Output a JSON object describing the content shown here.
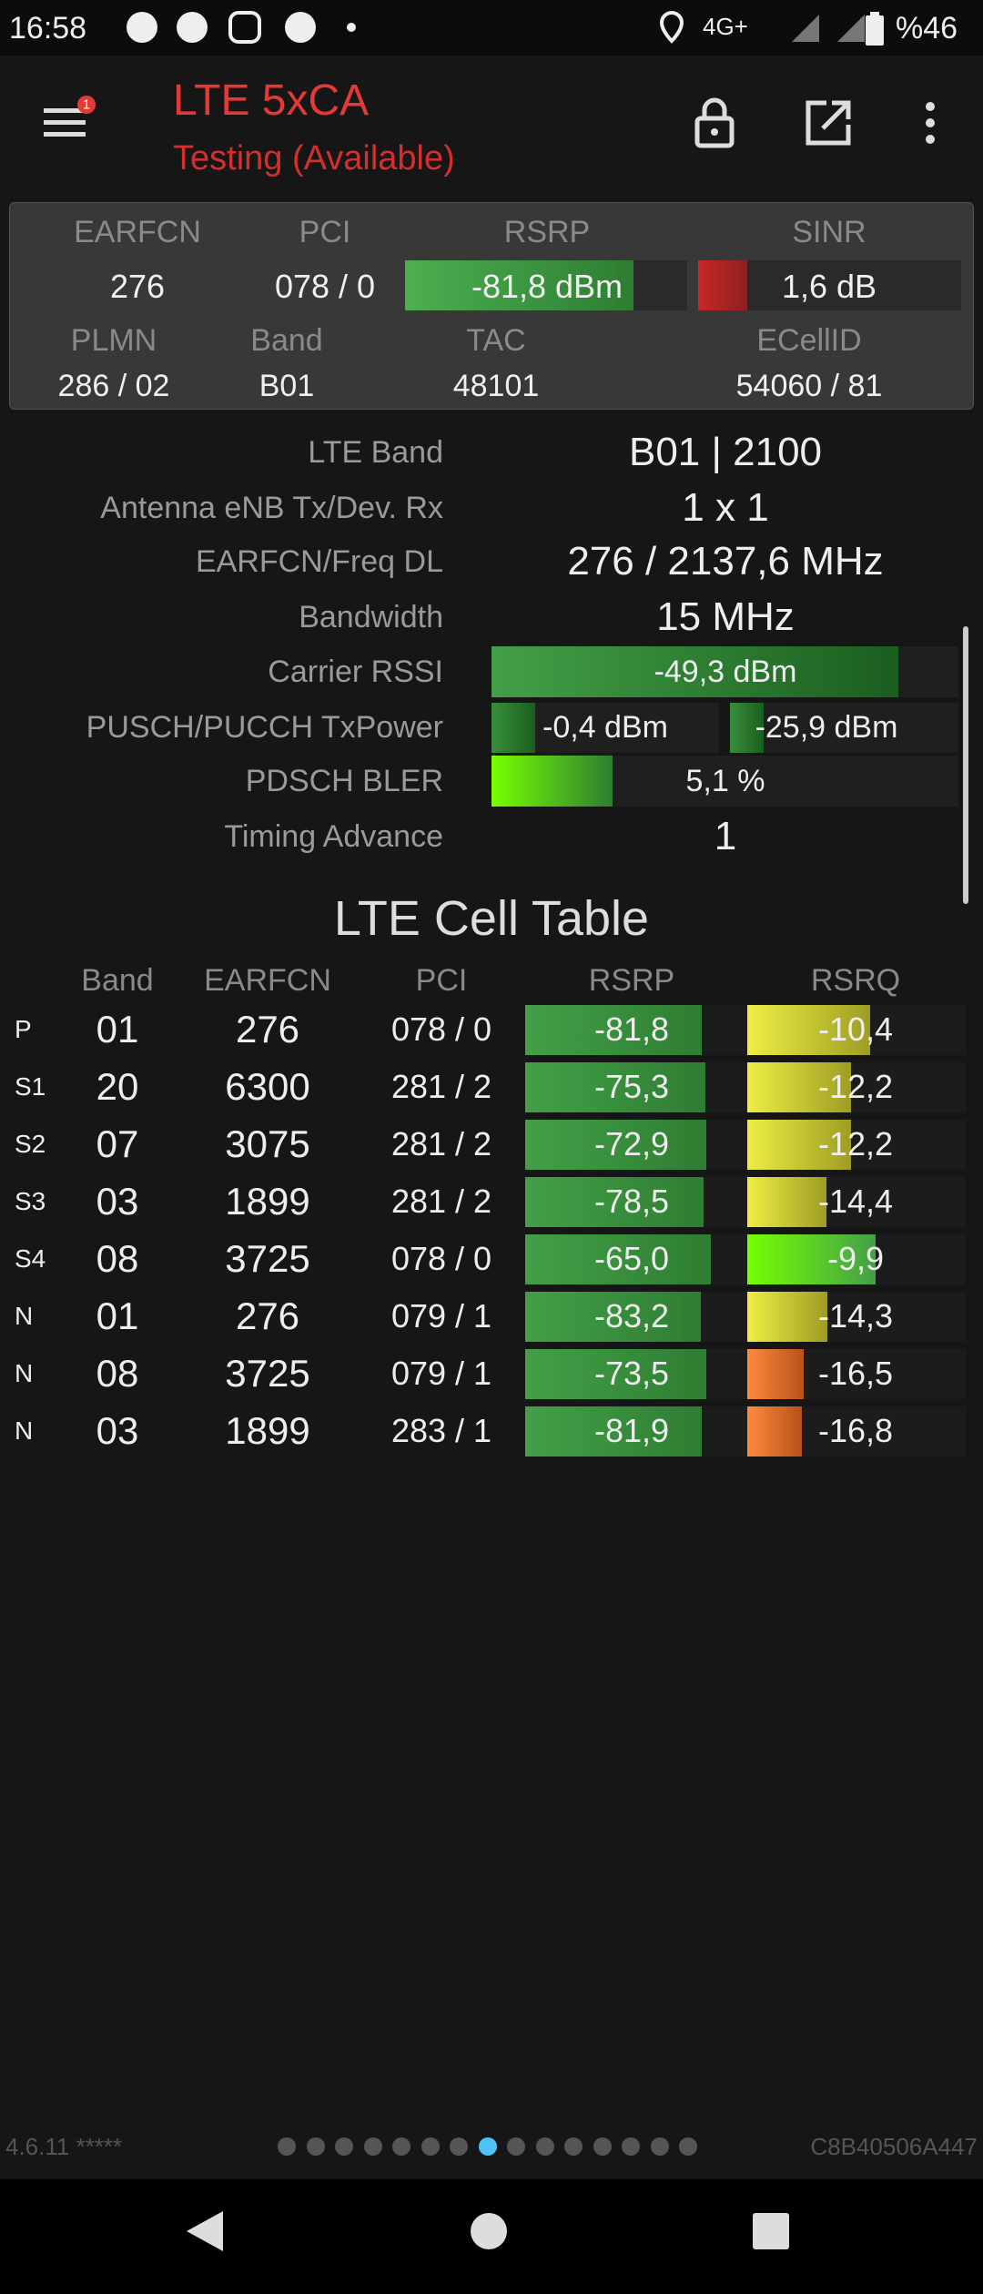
{
  "status_bar": {
    "time": "16:58",
    "network": "4G+",
    "battery": "%46"
  },
  "toolbar": {
    "title": "LTE 5xCA",
    "subtitle": "Testing (Available)",
    "badge": "1"
  },
  "summary": {
    "headers": [
      "EARFCN",
      "PCI",
      "RSRP",
      "SINR"
    ],
    "values": [
      "276",
      "078 / 0",
      "-81,8 dBm",
      "1,6 dB"
    ],
    "headers2": [
      "PLMN",
      "Band",
      "TAC",
      "ECellID"
    ],
    "values2": [
      "286 / 02",
      "B01",
      "48101",
      "54060 / 81"
    ]
  },
  "details": [
    {
      "label": "LTE Band",
      "values": [
        "B01 | 2100"
      ]
    },
    {
      "label": "Antenna eNB Tx/Dev. Rx",
      "values": [
        "1 x 1"
      ]
    },
    {
      "label": "EARFCN/Freq DL",
      "values": [
        "276 / 2137,6 MHz"
      ]
    },
    {
      "label": "Bandwidth",
      "values": [
        "15 MHz"
      ]
    },
    {
      "label": "Carrier RSSI",
      "values": [
        "-49,3 dBm"
      ]
    },
    {
      "label": "PUSCH/PUCCH TxPower",
      "values": [
        "-0,4 dBm",
        "-25,9 dBm"
      ]
    },
    {
      "label": "PDSCH BLER",
      "values": [
        "5,1 %"
      ]
    },
    {
      "label": "Timing Advance",
      "values": [
        "1"
      ]
    }
  ],
  "cell_table": {
    "title": "LTE Cell Table",
    "columns": [
      "Band",
      "EARFCN",
      "PCI",
      "RSRP",
      "RSRQ"
    ],
    "rows": [
      [
        "P",
        "01",
        "276",
        "078 / 0",
        "-81,8",
        "-10,4"
      ],
      [
        "S1",
        "20",
        "6300",
        "281 / 2",
        "-75,3",
        "-12,2"
      ],
      [
        "S2",
        "07",
        "3075",
        "281 / 2",
        "-72,9",
        "-12,2"
      ],
      [
        "S3",
        "03",
        "1899",
        "281 / 2",
        "-78,5",
        "-14,4"
      ],
      [
        "S4",
        "08",
        "3725",
        "078 / 0",
        "-65,0",
        "-9,9"
      ],
      [
        "N",
        "01",
        "276",
        "079 / 1",
        "-83,2",
        "-14,3"
      ],
      [
        "N",
        "08",
        "3725",
        "079 / 1",
        "-73,5",
        "-16,5"
      ],
      [
        "N",
        "03",
        "1899",
        "283 / 1",
        "-81,9",
        "-16,8"
      ]
    ]
  },
  "footer": {
    "version": "4.6.11 *****",
    "device_id": "C8B40506A447"
  }
}
